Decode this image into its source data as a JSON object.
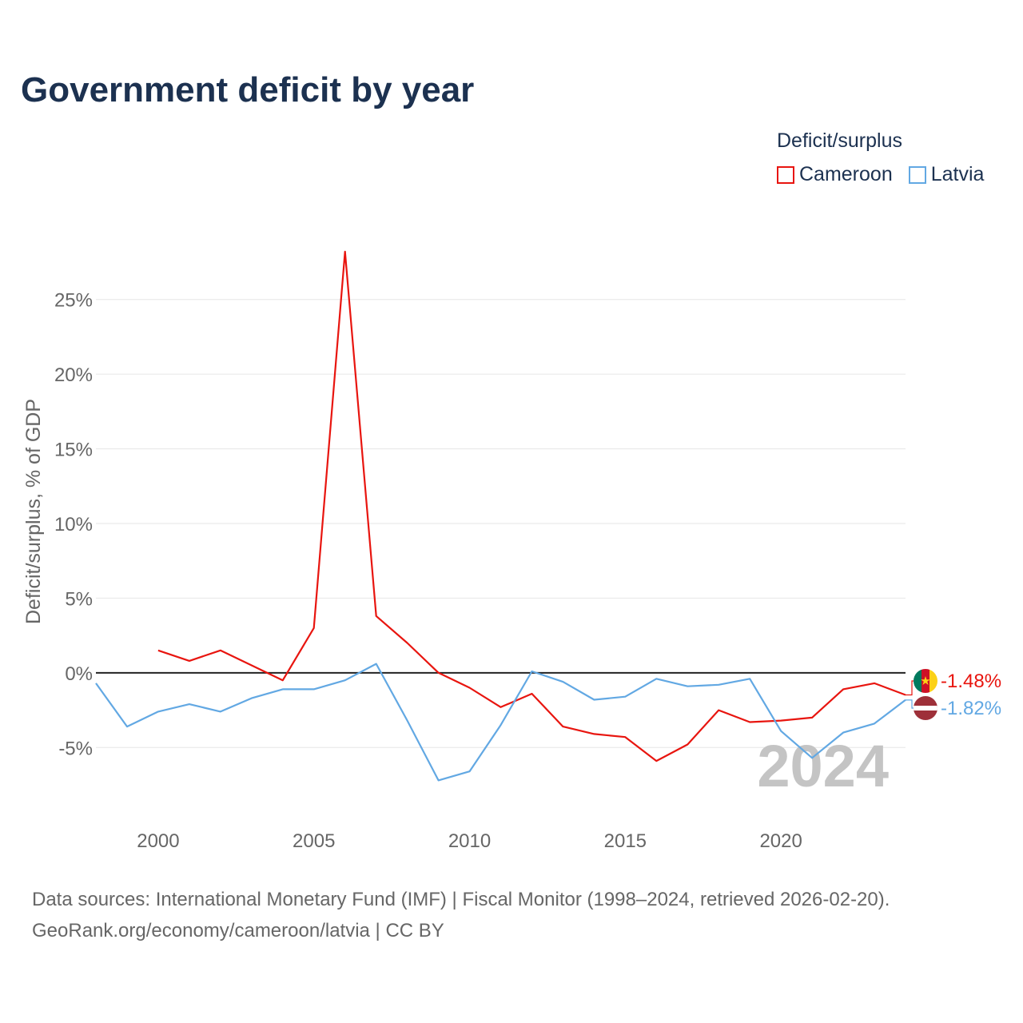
{
  "title": "Government deficit by year",
  "legend": {
    "title": "Deficit/surplus",
    "items": [
      {
        "label": "Cameroon",
        "color": "#e8150f"
      },
      {
        "label": "Latvia",
        "color": "#62a8e3"
      }
    ]
  },
  "chart_data": {
    "type": "line",
    "title": "Government deficit by year",
    "xlabel": "",
    "ylabel": "Deficit/surplus, % of GDP",
    "xlim": [
      1998,
      2024
    ],
    "ylim": [
      -9,
      29
    ],
    "xticks": [
      2000,
      2005,
      2010,
      2015,
      2020
    ],
    "xtick_labels": [
      "2000",
      "2005",
      "2010",
      "2015",
      "2020"
    ],
    "yticks": [
      -5,
      0,
      5,
      10,
      15,
      20,
      25
    ],
    "ytick_labels": [
      "-5%",
      "0%",
      "5%",
      "10%",
      "15%",
      "20%",
      "25%"
    ],
    "grid": true,
    "watermark_year": "2024",
    "series": [
      {
        "name": "Cameroon",
        "color": "#e8150f",
        "end_label": "-1.48%",
        "x": [
          2000,
          2001,
          2002,
          2003,
          2004,
          2005,
          2006,
          2007,
          2008,
          2009,
          2010,
          2011,
          2012,
          2013,
          2014,
          2015,
          2016,
          2017,
          2018,
          2019,
          2020,
          2021,
          2022,
          2023,
          2024
        ],
        "values": [
          1.5,
          0.8,
          1.5,
          0.5,
          -0.5,
          3.0,
          28.2,
          3.8,
          2.0,
          0.0,
          -1.0,
          -2.3,
          -1.4,
          -3.6,
          -4.1,
          -4.3,
          -5.9,
          -4.8,
          -2.5,
          -3.3,
          -3.2,
          -3.0,
          -1.1,
          -0.7,
          -1.48
        ]
      },
      {
        "name": "Latvia",
        "color": "#62a8e3",
        "end_label": "-1.82%",
        "x": [
          1998,
          1999,
          2000,
          2001,
          2002,
          2003,
          2004,
          2005,
          2006,
          2007,
          2008,
          2009,
          2010,
          2011,
          2012,
          2013,
          2014,
          2015,
          2016,
          2017,
          2018,
          2019,
          2020,
          2021,
          2022,
          2023,
          2024
        ],
        "values": [
          -0.7,
          -3.6,
          -2.6,
          -2.1,
          -2.6,
          -1.7,
          -1.1,
          -1.1,
          -0.5,
          0.6,
          -3.2,
          -7.2,
          -6.6,
          -3.5,
          0.1,
          -0.6,
          -1.8,
          -1.6,
          -0.4,
          -0.9,
          -0.8,
          -0.4,
          -3.9,
          -5.7,
          -4.0,
          -3.4,
          -1.82
        ]
      }
    ]
  },
  "source": {
    "line1": "Data sources: International Monetary Fund (IMF) | Fiscal Monitor (1998–2024, retrieved 2026-02-20).",
    "line2": "GeoRank.org/economy/cameroon/latvia | CC BY"
  }
}
